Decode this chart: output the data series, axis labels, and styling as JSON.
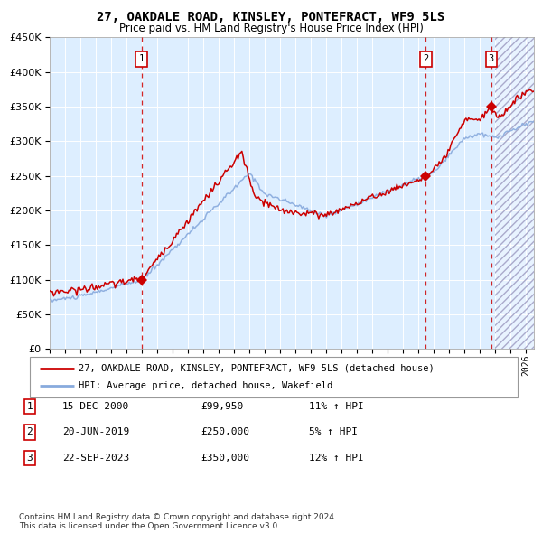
{
  "title": "27, OAKDALE ROAD, KINSLEY, PONTEFRACT, WF9 5LS",
  "subtitle": "Price paid vs. HM Land Registry's House Price Index (HPI)",
  "background_color": "#ffffff",
  "plot_bg_color": "#ddeeff",
  "hpi_line_color": "#88aadd",
  "price_line_color": "#cc0000",
  "sale_marker_color": "#cc0000",
  "vline_color": "#cc0000",
  "ylim": [
    0,
    450000
  ],
  "yticks": [
    0,
    50000,
    100000,
    150000,
    200000,
    250000,
    300000,
    350000,
    400000,
    450000
  ],
  "sales": [
    {
      "date_num": 2000.96,
      "price": 99950,
      "label": "1"
    },
    {
      "date_num": 2019.47,
      "price": 250000,
      "label": "2"
    },
    {
      "date_num": 2023.73,
      "price": 350000,
      "label": "3"
    }
  ],
  "legend_entries": [
    "27, OAKDALE ROAD, KINSLEY, PONTEFRACT, WF9 5LS (detached house)",
    "HPI: Average price, detached house, Wakefield"
  ],
  "table_rows": [
    {
      "num": "1",
      "date": "15-DEC-2000",
      "price": "£99,950",
      "hpi": "11% ↑ HPI"
    },
    {
      "num": "2",
      "date": "20-JUN-2019",
      "price": "£250,000",
      "hpi": "5% ↑ HPI"
    },
    {
      "num": "3",
      "date": "22-SEP-2023",
      "price": "£350,000",
      "hpi": "12% ↑ HPI"
    }
  ],
  "footer": "Contains HM Land Registry data © Crown copyright and database right 2024.\nThis data is licensed under the Open Government Licence v3.0.",
  "xmin": 1995.0,
  "xmax": 2026.5,
  "hatch_start": 2024.0
}
